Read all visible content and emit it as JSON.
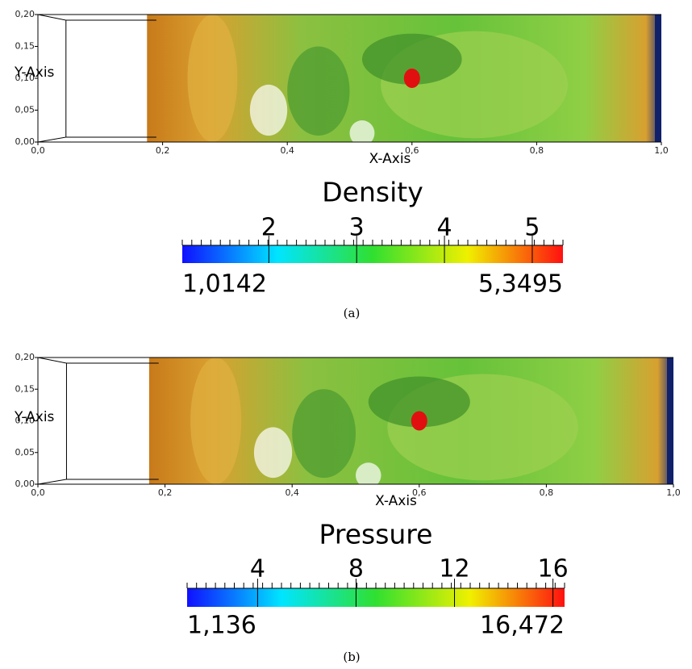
{
  "panels": [
    {
      "x_axis_label": "X-Axis",
      "y_axis_label": "Y-Axis",
      "xticks": [
        {
          "value": 0,
          "label": "0,0"
        },
        {
          "value": 0.2,
          "label": "0,2"
        },
        {
          "value": 0.4,
          "label": "0,4"
        },
        {
          "value": 0.6,
          "label": "0,6"
        },
        {
          "value": 0.8,
          "label": "0,8"
        },
        {
          "value": 1,
          "label": "1,0"
        }
      ],
      "yticks": [
        {
          "value": 0,
          "label": "0,00"
        },
        {
          "value": 0.05,
          "label": "0,05"
        },
        {
          "value": 0.1,
          "label": "0,10"
        },
        {
          "value": 0.15,
          "label": "0,15"
        },
        {
          "value": 0.2,
          "label": "0,20"
        }
      ],
      "colorbar": {
        "title": "Density",
        "range": [
          {
            "value": 1.0142,
            "label": "1,0142"
          },
          {
            "value": 5.3495,
            "label": "5,3495"
          }
        ],
        "ticks": [
          2,
          3,
          4,
          5
        ]
      },
      "caption": "(a)"
    },
    {
      "x_axis_label": "X-Axis",
      "y_axis_label": "Y-Axis",
      "xticks": [
        {
          "value": 0,
          "label": "0,0"
        },
        {
          "value": 0.2,
          "label": "0,2"
        },
        {
          "value": 0.4,
          "label": "0,4"
        },
        {
          "value": 0.6,
          "label": "0,6"
        },
        {
          "value": 0.8,
          "label": "0,8"
        },
        {
          "value": 1,
          "label": "1,0"
        }
      ],
      "yticks": [
        {
          "value": 0,
          "label": "0,00"
        },
        {
          "value": 0.05,
          "label": "0,05"
        },
        {
          "value": 0.1,
          "label": "0,10"
        },
        {
          "value": 0.15,
          "label": "0,15"
        },
        {
          "value": 0.2,
          "label": "0,20"
        }
      ],
      "colorbar": {
        "title": "Pressure",
        "range": [
          {
            "value": 1.136,
            "label": "1,136"
          },
          {
            "value": 16.472,
            "label": "16,472"
          }
        ],
        "ticks": [
          4,
          8,
          12,
          16
        ]
      },
      "caption": "(b)"
    }
  ]
}
